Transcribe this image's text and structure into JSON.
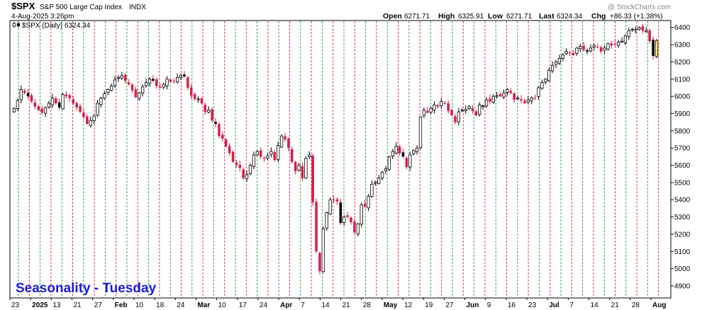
{
  "header": {
    "symbol": "$SPX",
    "description": "S&P 500 Large Cap Index",
    "exchange": "INDX",
    "datetime": "4-Aug-2025 3:26pm",
    "watermark": "@ StockCharts.com",
    "open_label": "Open",
    "open_value": "6271.71",
    "high_label": "High",
    "high_value": "6325.91",
    "low_label": "Low",
    "low_value": "6271.71",
    "last_label": "Last",
    "last_value": "6324.34",
    "chg_label": "Chg",
    "chg_value": "+86.33 (+1.38%)"
  },
  "legend": {
    "label": "$SPX (Daily) 6324.34",
    "icon": "candlestick-icon"
  },
  "annotation": "Seasonality - Tuesday",
  "colors": {
    "background": "#ffffff",
    "up_body": "#ffffff",
    "down_body": "#d81e4a",
    "black_candle": "#000000",
    "last_candle": "#ffee66",
    "green_line": "#2e9a2e",
    "red_line": "#d81e4a",
    "annotation": "#1c1cd6",
    "axis": "#000000"
  },
  "chart_data": {
    "type": "candlestick",
    "title": "$SPX S&P 500 Large Cap Index INDX",
    "ylim": [
      4830,
      6440
    ],
    "y_ticks": [
      4900,
      5000,
      5100,
      5200,
      5300,
      5400,
      5500,
      5600,
      5700,
      5800,
      5900,
      6000,
      6100,
      6200,
      6300,
      6400
    ],
    "x_ticks": [
      {
        "label": "23",
        "bold": false
      },
      {
        "label": "2025",
        "bold": true
      },
      {
        "label": "13",
        "bold": false
      },
      {
        "label": "21",
        "bold": false
      },
      {
        "label": "27",
        "bold": false
      },
      {
        "label": "Feb",
        "bold": true
      },
      {
        "label": "10",
        "bold": false
      },
      {
        "label": "18",
        "bold": false
      },
      {
        "label": "24",
        "bold": false
      },
      {
        "label": "Mar",
        "bold": true
      },
      {
        "label": "10",
        "bold": false
      },
      {
        "label": "17",
        "bold": false
      },
      {
        "label": "24",
        "bold": false
      },
      {
        "label": "Apr",
        "bold": true
      },
      {
        "label": "7",
        "bold": false
      },
      {
        "label": "14",
        "bold": false
      },
      {
        "label": "21",
        "bold": false
      },
      {
        "label": "28",
        "bold": false
      },
      {
        "label": "May",
        "bold": true
      },
      {
        "label": "12",
        "bold": false
      },
      {
        "label": "19",
        "bold": false
      },
      {
        "label": "27",
        "bold": false
      },
      {
        "label": "Jun",
        "bold": true
      },
      {
        "label": "9",
        "bold": false
      },
      {
        "label": "16",
        "bold": false
      },
      {
        "label": "23",
        "bold": false
      },
      {
        "label": "Jul",
        "bold": true
      },
      {
        "label": "7",
        "bold": false
      },
      {
        "label": "14",
        "bold": false
      },
      {
        "label": "21",
        "bold": false
      },
      {
        "label": "28",
        "bold": false
      },
      {
        "label": "Aug",
        "bold": true
      }
    ],
    "seasonality_lines": {
      "colors_in_order": [
        "green",
        "red",
        "green",
        "red",
        "green",
        "red",
        "green",
        "red",
        "green",
        "red",
        "green",
        "red",
        "green",
        "red",
        "green",
        "red",
        "green",
        "red",
        "green",
        "red",
        "green",
        "red",
        "green",
        "red",
        "green",
        "red",
        "green",
        "red",
        "green",
        "red",
        "green",
        "red",
        "green",
        "red",
        "green",
        "red",
        "green",
        "red",
        "green",
        "red",
        "green",
        "red",
        "green",
        "red",
        "green",
        "red",
        "green",
        "red",
        "green",
        "red",
        "green",
        "red",
        "green",
        "red",
        "green",
        "red",
        "green",
        "red",
        "green",
        "red",
        "green",
        "red",
        "green",
        "red"
      ]
    },
    "series": [
      {
        "close": [
          5930,
          5975,
          6040,
          6020,
          6000,
          5970,
          5940,
          5920,
          5905,
          5935,
          5960,
          5990,
          5960,
          5935,
          6010,
          6000,
          5990,
          5960,
          5935,
          5910,
          5880,
          5840,
          5860,
          5885,
          5960,
          5990,
          6015,
          6040,
          6060,
          6095,
          6110,
          6120,
          6090,
          6070,
          6035,
          5995,
          6020,
          6055,
          6080,
          6100,
          6090,
          6060,
          6050,
          6070,
          6100,
          6085,
          6090,
          6110,
          6120,
          6115,
          6050,
          6005,
          5985,
          5985,
          5960,
          5910,
          5920,
          5860,
          5840,
          5770,
          5755,
          5710,
          5670,
          5620,
          5600,
          5585,
          5525,
          5545,
          5600,
          5660,
          5680,
          5650,
          5640,
          5655,
          5680,
          5630,
          5715,
          5770,
          5750,
          5700,
          5620,
          5565,
          5600,
          5525,
          5640,
          5660,
          5385,
          5100,
          4985,
          5230,
          5325,
          5400,
          5395,
          5390,
          5265,
          5300,
          5300,
          5270,
          5210,
          5260,
          5370,
          5360,
          5420,
          5490,
          5500,
          5525,
          5560,
          5580,
          5650,
          5680,
          5710,
          5670,
          5650,
          5590,
          5660,
          5685,
          5700,
          5880,
          5920,
          5905,
          5930,
          5950,
          5940,
          5970,
          5960,
          5915,
          5890,
          5850,
          5910,
          5920,
          5925,
          5940,
          5915,
          5890,
          5950,
          5945,
          5980,
          5970,
          6000,
          6005,
          6000,
          6020,
          6040,
          6020,
          5980,
          5990,
          5975,
          5960,
          5980,
          5990,
          5990,
          6050,
          6080,
          6100,
          6150,
          6180,
          6200,
          6220,
          6240,
          6260,
          6250,
          6240,
          6280,
          6290,
          6270,
          6265,
          6280,
          6295,
          6285,
          6260,
          6280,
          6305,
          6295,
          6300,
          6315,
          6320,
          6350,
          6380,
          6390,
          6390,
          6400,
          6380,
          6380,
          6320,
          6235,
          6324
        ],
        "colors": "mix of white (up), red (down) and black candles"
      }
    ]
  }
}
